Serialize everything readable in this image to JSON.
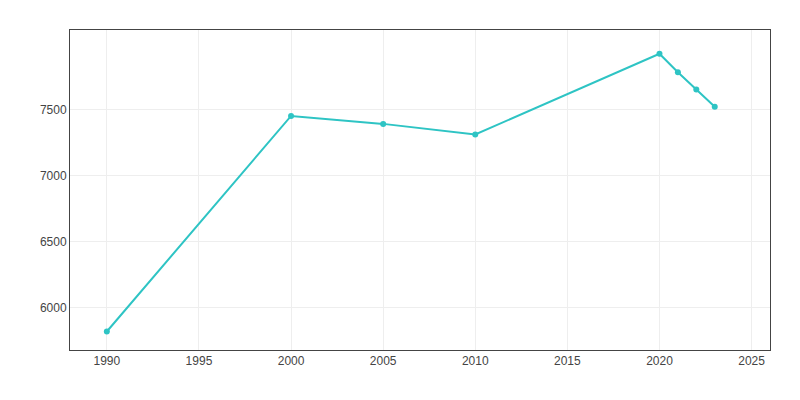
{
  "chart_data": {
    "type": "line",
    "x": [
      1990,
      2000,
      2005,
      2010,
      2020,
      2021,
      2022,
      2023
    ],
    "values": [
      5820,
      7450,
      7390,
      7310,
      7920,
      7780,
      7650,
      7520
    ],
    "color": "#2EC4C4",
    "marker": "circle",
    "xlim": [
      1988,
      2026
    ],
    "ylim": [
      5680,
      8100
    ],
    "xticks": [
      1990,
      1995,
      2000,
      2005,
      2010,
      2015,
      2020,
      2025
    ],
    "yticks": [
      6000,
      6500,
      7000,
      7500
    ],
    "grid": true
  }
}
